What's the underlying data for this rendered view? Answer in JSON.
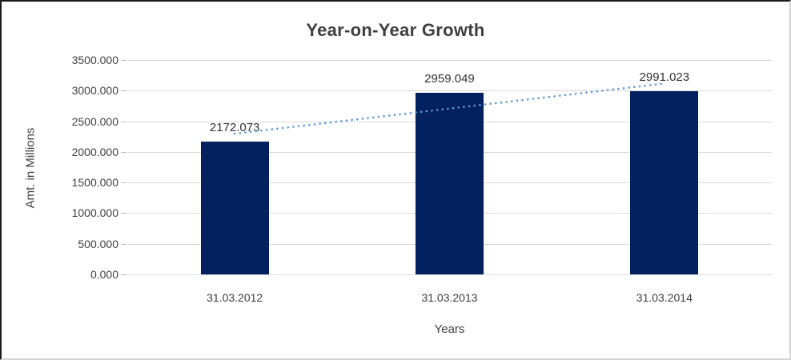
{
  "chart_data": {
    "type": "bar",
    "title": "Year-on-Year Growth",
    "xlabel": "Years",
    "ylabel": "Amt. in Millions",
    "categories": [
      "31.03.2012",
      "31.03.2013",
      "31.03.2014"
    ],
    "values": [
      2172.073,
      2959.049,
      2991.023
    ],
    "value_label_decimals": 3,
    "ylim": [
      0,
      3500
    ],
    "ytick_step": 500,
    "ytick_labels": [
      "3500.000",
      "3000.000",
      "2500.000",
      "2000.000",
      "1500.000",
      "1000.000",
      "500.000",
      "0.000"
    ],
    "grid": true,
    "legend": "none",
    "trendline": {
      "type": "linear",
      "style": "dotted"
    },
    "colors": {
      "bar": "#03215e",
      "trendline": "#5b9bd5",
      "gridline": "#d9d9d9",
      "text": "#404040",
      "title": "#3f3f3f",
      "background": "#ffffff"
    }
  }
}
